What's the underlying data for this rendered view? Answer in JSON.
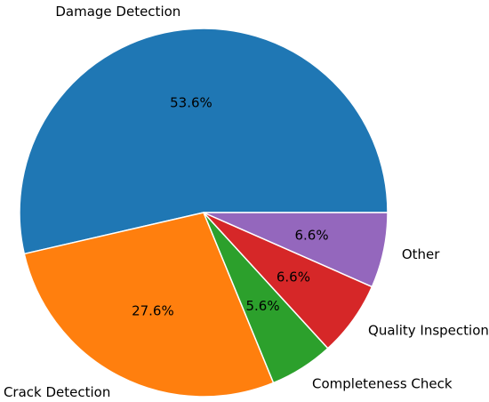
{
  "chart_data": {
    "type": "pie",
    "title": "",
    "start_angle_deg": 0,
    "direction": "counterclockwise",
    "slice_edge_color": "#ffffff",
    "slices": [
      {
        "label": "Damage Detection",
        "value": 53.6,
        "pct_label": "53.6%",
        "color": "#1f77b4"
      },
      {
        "label": "Crack Detection",
        "value": 27.6,
        "pct_label": "27.6%",
        "color": "#ff7f0e"
      },
      {
        "label": "Completeness Check",
        "value": 5.6,
        "pct_label": "5.6%",
        "color": "#2ca02c"
      },
      {
        "label": "Quality Inspection",
        "value": 6.6,
        "pct_label": "6.6%",
        "color": "#d62728"
      },
      {
        "label": "Other",
        "value": 6.6,
        "pct_label": "6.6%",
        "color": "#9467bd"
      }
    ]
  }
}
